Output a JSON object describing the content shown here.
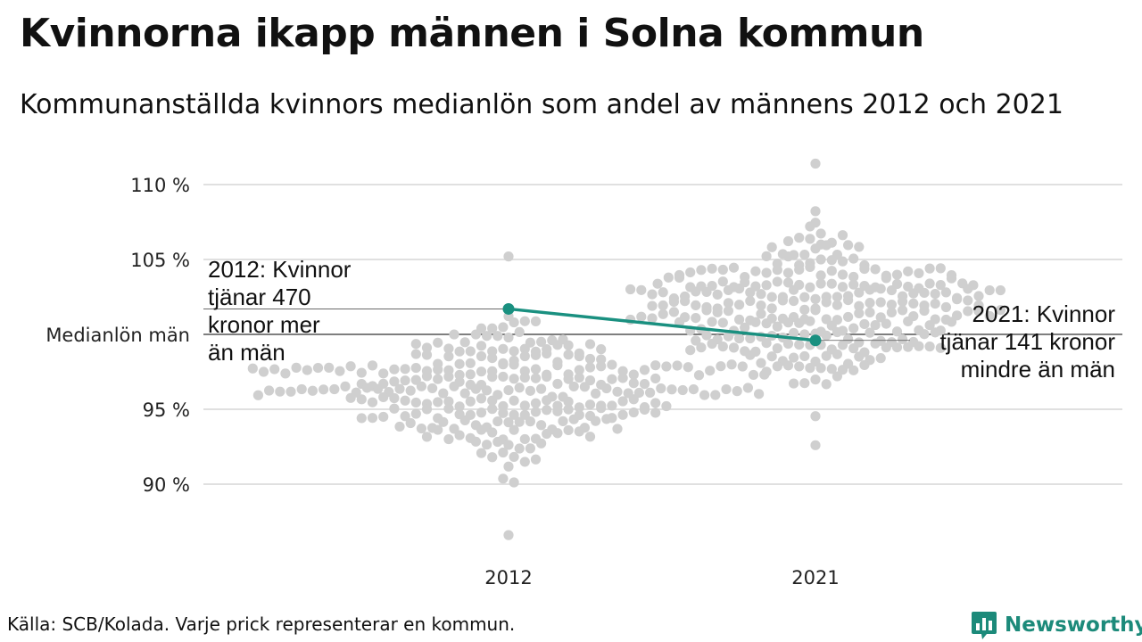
{
  "title": "Kvinnorna ikapp männen i Solna kommun",
  "subtitle": "Kommunanställda kvinnors medianlön som andel av männens 2012 och 2021",
  "source": "Källa: SCB/Kolada. Varje prick representerar en kommun.",
  "brand": {
    "name": "Newsworthy",
    "color": "#1c8a7a",
    "logo_icon": "bar-chart-speech-bubble"
  },
  "colors": {
    "highlight": "#1a9080",
    "dots": "#cfcfcf",
    "grid": "#e0e0e0",
    "reference": "#333333"
  },
  "chart_data": {
    "type": "scatter",
    "title": "Kvinnorna ikapp männen i Solna kommun",
    "subtitle": "Kommunanställda kvinnors medianlön som andel av männens 2012 och 2021",
    "categories": [
      "2012",
      "2021"
    ],
    "ylim": [
      86,
      111.5
    ],
    "y_ticks": [
      {
        "value": 90,
        "label": "90 %"
      },
      {
        "value": 95,
        "label": "95 %"
      },
      {
        "value": 100,
        "label": "Medianlön män"
      },
      {
        "value": 105,
        "label": "105 %"
      },
      {
        "value": 110,
        "label": "110 %"
      }
    ],
    "reference_line": {
      "value": 100,
      "label": "Medianlön män"
    },
    "grid": true,
    "legend": "none",
    "highlight": {
      "name": "Solna",
      "values": [
        101.7,
        99.6
      ],
      "annotations": [
        {
          "category": "2012",
          "lines": [
            "2012: Kvinnor",
            "tjänar 470",
            "kronor mer",
            "än män"
          ]
        },
        {
          "category": "2021",
          "lines": [
            "2021: Kvinnor",
            "tjänar 141 kronor",
            "mindre än män"
          ]
        }
      ]
    },
    "series": [
      {
        "category": "2012",
        "distribution": {
          "count": 290,
          "median": 96.2,
          "sd": 2.1,
          "min": 86.6,
          "max": 105.2
        }
      },
      {
        "category": "2021",
        "distribution": {
          "count": 290,
          "median": 101.5,
          "sd": 2.3,
          "min": 92.6,
          "max": 111.4
        }
      }
    ]
  }
}
